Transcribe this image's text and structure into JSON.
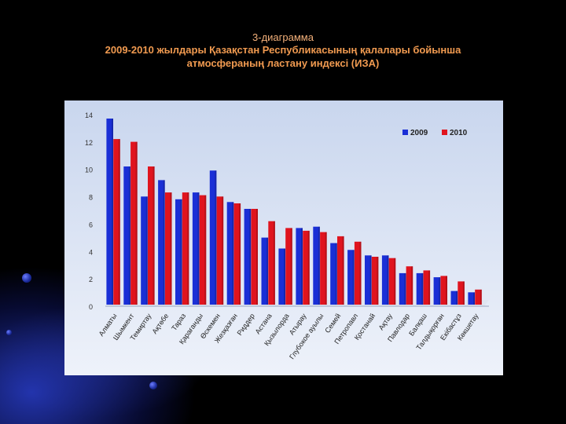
{
  "slide": {
    "figure_label": "3-диаграмма",
    "title_line1": "2009-2010 жылдары Қазақстан Республикасының қалалары бойынша",
    "title_line2": "атмосфераның ластану индексі (ИЗА)"
  },
  "colors": {
    "series_2009": "#1a2fd6",
    "series_2010": "#e0141e",
    "plot_bg_top": "#c9d6ee",
    "plot_bg_bottom": "#eef2fa",
    "title_color": "#f09a50"
  },
  "chart_data": {
    "type": "bar",
    "categories": [
      "Алматы",
      "Шымкент",
      "Темиртау",
      "Ақтөбе",
      "Тараз",
      "Қарағанды",
      "Өскемен",
      "Жезқазған",
      "Риддер",
      "Астана",
      "Қызылорда",
      "Атырау",
      "Глубокое ауылы",
      "Семей",
      "Петропавл",
      "Қостанай",
      "Ақтау",
      "Павлодар",
      "Балқаш",
      "Талдықорған",
      "Екібастұз",
      "Көкшетау"
    ],
    "series": [
      {
        "name": "2009",
        "values": [
          13.6,
          10.1,
          7.9,
          9.1,
          7.7,
          8.2,
          9.8,
          7.5,
          7.0,
          4.9,
          4.1,
          5.6,
          5.7,
          4.5,
          4.0,
          3.6,
          3.6,
          2.3,
          2.3,
          2.0,
          1.0,
          0.9
        ]
      },
      {
        "name": "2010",
        "values": [
          12.1,
          11.9,
          10.1,
          8.2,
          8.2,
          8.0,
          7.9,
          7.4,
          7.0,
          6.1,
          5.6,
          5.4,
          5.3,
          5.0,
          4.6,
          3.5,
          3.4,
          2.8,
          2.5,
          2.1,
          1.7,
          1.1
        ]
      }
    ],
    "ylim": [
      0,
      14
    ],
    "yticks": [
      "0",
      "2",
      "4",
      "6",
      "8",
      "10",
      "12",
      "14"
    ],
    "legend_position": "top-right",
    "grid": false
  }
}
